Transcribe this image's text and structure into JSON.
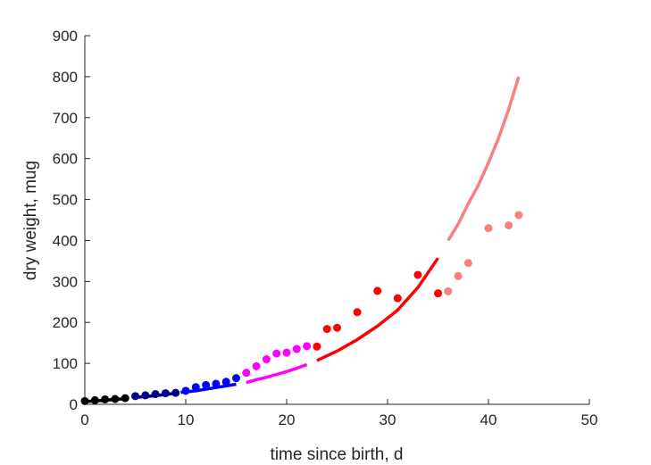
{
  "chart_data": {
    "type": "scatter",
    "xlabel": "time since birth, d",
    "ylabel": "dry weight, mug",
    "xlim": [
      0,
      50
    ],
    "ylim": [
      0,
      900
    ],
    "xticks": [
      0,
      10,
      20,
      30,
      40,
      50
    ],
    "yticks": [
      0,
      100,
      200,
      300,
      400,
      500,
      600,
      700,
      800,
      900
    ],
    "grid": false,
    "series": [
      {
        "color": "#000000",
        "points": [
          [
            0,
            8
          ],
          [
            1,
            10
          ],
          [
            2,
            12
          ],
          [
            3,
            13
          ],
          [
            4,
            15
          ]
        ],
        "curve": [
          [
            0,
            7
          ],
          [
            1,
            8
          ],
          [
            2,
            10
          ],
          [
            3,
            12
          ],
          [
            4,
            13.5
          ]
        ]
      },
      {
        "color": "#00008b",
        "points": [
          [
            5,
            20
          ],
          [
            6,
            22
          ],
          [
            7,
            25
          ],
          [
            8,
            27
          ],
          [
            9,
            28
          ]
        ],
        "curve": [
          [
            5,
            17
          ],
          [
            6,
            19
          ],
          [
            7,
            21
          ],
          [
            8,
            24
          ],
          [
            9,
            27
          ]
        ]
      },
      {
        "color": "#0000ff",
        "points": [
          [
            10,
            33
          ],
          [
            11,
            42
          ],
          [
            12,
            47
          ],
          [
            13,
            50
          ],
          [
            14,
            55
          ],
          [
            15,
            64
          ]
        ],
        "curve": [
          [
            9.5,
            29
          ],
          [
            11,
            33
          ],
          [
            12,
            37
          ],
          [
            13,
            41
          ],
          [
            14,
            45
          ],
          [
            15,
            49
          ]
        ]
      },
      {
        "color": "#ff00ff",
        "points": [
          [
            16,
            77
          ],
          [
            17,
            93
          ],
          [
            18,
            110
          ],
          [
            19,
            124
          ],
          [
            20,
            126
          ],
          [
            21,
            135
          ],
          [
            22,
            142
          ]
        ],
        "curve": [
          [
            16,
            53
          ],
          [
            17,
            60
          ],
          [
            18,
            66
          ],
          [
            19,
            73
          ],
          [
            20,
            80
          ],
          [
            21,
            88
          ],
          [
            22,
            97
          ]
        ]
      },
      {
        "color": "#ff0000",
        "points": [
          [
            23,
            141
          ],
          [
            24,
            184
          ],
          [
            25,
            187
          ],
          [
            27,
            225
          ],
          [
            29,
            277
          ],
          [
            31,
            259
          ],
          [
            33,
            316
          ],
          [
            35,
            271
          ]
        ],
        "curve": [
          [
            23,
            107
          ],
          [
            25,
            130
          ],
          [
            27,
            158
          ],
          [
            29,
            191
          ],
          [
            31,
            230
          ],
          [
            33,
            285
          ],
          [
            35,
            357
          ]
        ]
      },
      {
        "color": "#f88080",
        "points": [
          [
            36,
            276
          ],
          [
            37,
            313
          ],
          [
            38,
            345
          ],
          [
            40,
            430
          ],
          [
            42,
            437
          ],
          [
            43,
            462
          ]
        ],
        "curve": [
          [
            36,
            400
          ],
          [
            37,
            440
          ],
          [
            38,
            490
          ],
          [
            39,
            535
          ],
          [
            40,
            590
          ],
          [
            41,
            650
          ],
          [
            42,
            720
          ],
          [
            43,
            800
          ]
        ]
      }
    ]
  }
}
